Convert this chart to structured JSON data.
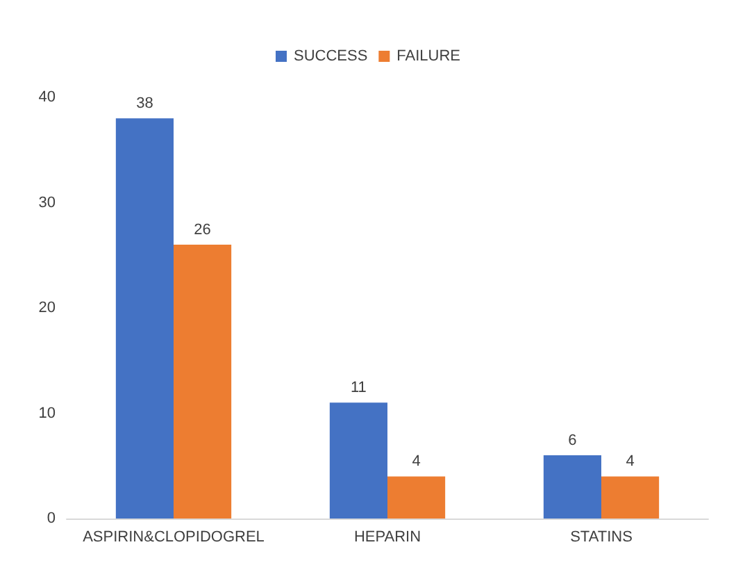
{
  "chart_data": {
    "type": "bar",
    "categories": [
      "ASPIRIN&CLOPIDOGREL",
      "HEPARIN",
      "STATINS"
    ],
    "series": [
      {
        "name": "SUCCESS",
        "color": "#4472c4",
        "values": [
          38,
          11,
          6
        ]
      },
      {
        "name": "FAILURE",
        "color": "#ed7d31",
        "values": [
          26,
          4,
          4
        ]
      }
    ],
    "ylim": [
      0,
      40
    ],
    "yticks": [
      0,
      10,
      20,
      30,
      40
    ],
    "grid": false,
    "legend": "top",
    "data_labels": true
  }
}
